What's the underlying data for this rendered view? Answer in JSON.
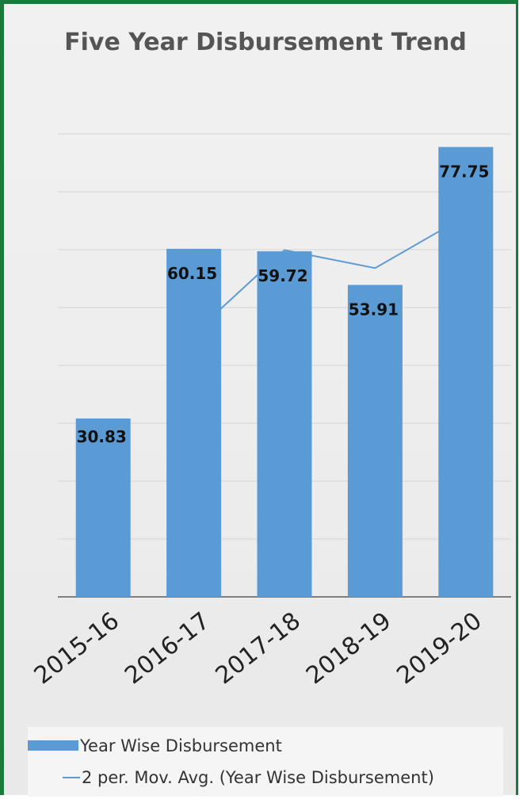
{
  "chart_data": {
    "type": "bar",
    "title": "Five Year Disbursement Trend",
    "categories": [
      "2015-16",
      "2016-17",
      "2017-18",
      "2018-19",
      "2019-20"
    ],
    "series": [
      {
        "name": "Year Wise Disbursement",
        "kind": "bar",
        "values": [
          30.83,
          60.15,
          59.72,
          53.91,
          77.75
        ],
        "labels": [
          "30.83",
          "60.15",
          "59.72",
          "53.91",
          "77.75"
        ]
      },
      {
        "name": "2 per. Mov. Avg. (Year Wise Disbursement)",
        "kind": "line",
        "values": [
          null,
          45.49,
          59.935,
          56.815,
          65.83
        ]
      }
    ],
    "ylim": [
      0,
      80
    ],
    "grid": true,
    "legend_position": "bottom",
    "colors": {
      "bar": "#5b9bd5",
      "line": "#5b9bd5",
      "frame": "#1a7a3c"
    }
  }
}
